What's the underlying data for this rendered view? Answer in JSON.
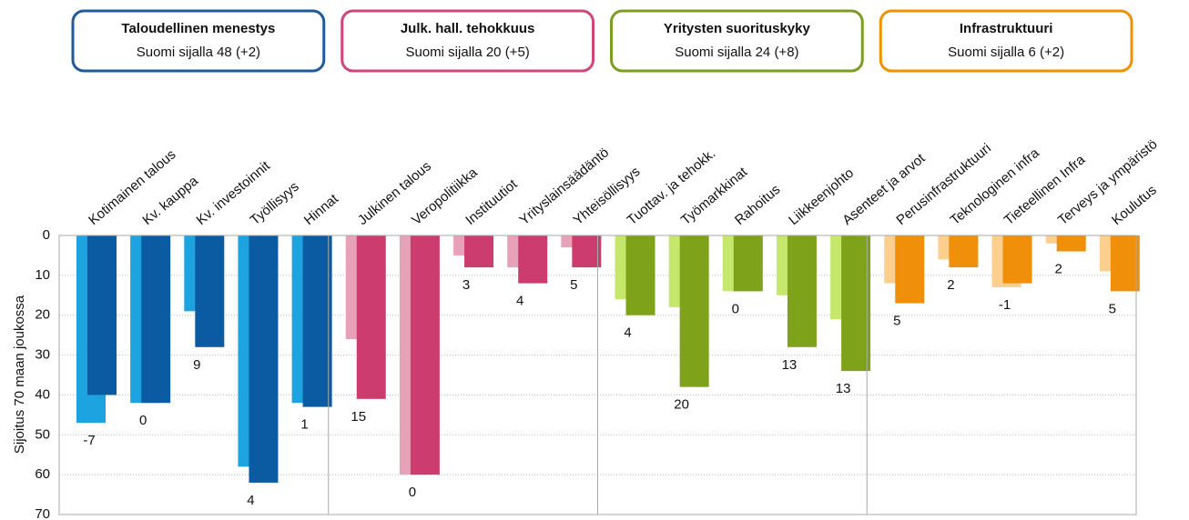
{
  "chart_data": {
    "type": "bar",
    "y_label": "Sijoitus 70 maan joukossa",
    "ylim": [
      0,
      70
    ],
    "yticks": [
      0,
      10,
      20,
      30,
      40,
      50,
      60,
      70
    ],
    "y_inverted": true,
    "grid": true,
    "groups": [
      {
        "title": "Taloudellinen menestys",
        "subtitle": "Suomi sijalla 48 (+2)",
        "border_color": "#1f5b9b",
        "categories": [
          "Kotimainen talous",
          "Kv. kauppa",
          "Kv. investoinnit",
          "Työllisyys",
          "Hinnat"
        ],
        "series": [
          {
            "color": "#1ca3e0",
            "values": [
              47,
              42,
              19,
              58,
              42
            ]
          },
          {
            "color": "#0a5ba1",
            "values": [
              40,
              42,
              28,
              62,
              43
            ]
          }
        ],
        "changes": [
          -7,
          0,
          9,
          4,
          1
        ]
      },
      {
        "title": "Julk. hall. tehokkuus",
        "subtitle": "Suomi sijalla 20 (+5)",
        "border_color": "#d0457a",
        "categories": [
          "Julkinen talous",
          "Veropolitiikka",
          "Instituutiot",
          "Yrityslainsäädäntö",
          "Yhteisöllisyys"
        ],
        "series": [
          {
            "color": "#e8a2b8",
            "values": [
              26,
              60,
              5,
              8,
              3
            ]
          },
          {
            "color": "#cc3c6e",
            "values": [
              41,
              60,
              8,
              12,
              8
            ]
          }
        ],
        "changes": [
          15,
          0,
          3,
          4,
          5
        ]
      },
      {
        "title": "Yritysten suorituskyky",
        "subtitle": "Suomi sijalla 24 (+8)",
        "border_color": "#7b9d21",
        "categories": [
          "Tuottav. ja tehokk.",
          "Työmarkkinat",
          "Rahoitus",
          "Liikkeenjohto",
          "Asenteet ja arvot"
        ],
        "series": [
          {
            "color": "#c5e86c",
            "values": [
              16,
              18,
              14,
              15,
              21
            ]
          },
          {
            "color": "#7ea31a",
            "values": [
              20,
              38,
              14,
              28,
              34
            ]
          }
        ],
        "changes": [
          4,
          20,
          0,
          13,
          13
        ]
      },
      {
        "title": "Infrastruktuuri",
        "subtitle": "Suomi sijalla 6 (+2)",
        "border_color": "#f39200",
        "categories": [
          "Perusinfrastruktuuri",
          "Teknologinen infra",
          "Tieteellinen Infra",
          "Terveys ja ympäristö",
          "Koulutus"
        ],
        "series": [
          {
            "color": "#fccf8e",
            "values": [
              12,
              6,
              13,
              2,
              9
            ]
          },
          {
            "color": "#f0900a",
            "values": [
              17,
              8,
              12,
              4,
              14
            ]
          }
        ],
        "changes": [
          5,
          2,
          -1,
          2,
          5
        ]
      }
    ]
  }
}
